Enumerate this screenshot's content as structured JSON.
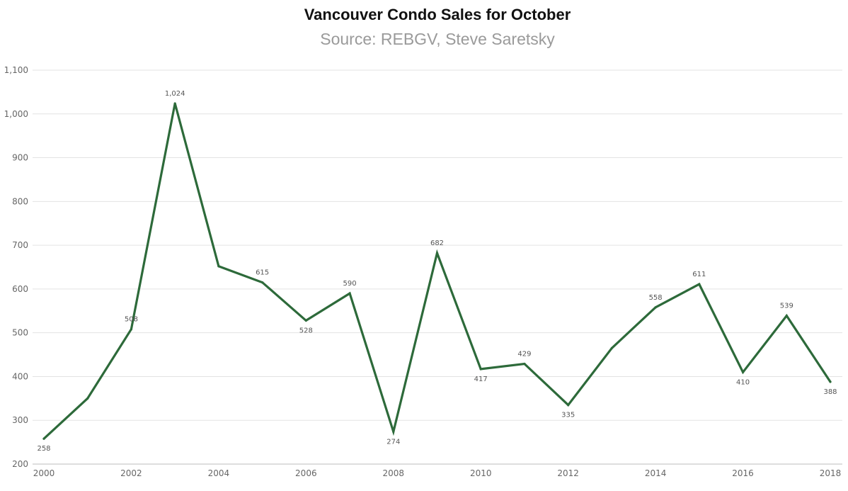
{
  "chart_data": {
    "type": "line",
    "title": "Vancouver Condo Sales for October",
    "subtitle": "Source: REBGV, Steve Saretsky",
    "xlabel": "",
    "ylabel": "",
    "x": [
      2000,
      2001,
      2002,
      2003,
      2004,
      2005,
      2006,
      2007,
      2008,
      2009,
      2010,
      2011,
      2012,
      2013,
      2014,
      2015,
      2016,
      2017,
      2018
    ],
    "series": [
      {
        "name": "",
        "color": "#2d6a3a",
        "values": [
          258,
          350,
          508,
          1024,
          652,
          615,
          528,
          590,
          274,
          682,
          417,
          429,
          335,
          465,
          558,
          611,
          410,
          539,
          388
        ]
      }
    ],
    "data_labels": [
      {
        "x": 2000,
        "text": "258",
        "pos": "below"
      },
      {
        "x": 2002,
        "text": "508",
        "pos": "above"
      },
      {
        "x": 2003,
        "text": "1,024",
        "pos": "above"
      },
      {
        "x": 2005,
        "text": "615",
        "pos": "above"
      },
      {
        "x": 2006,
        "text": "528",
        "pos": "below"
      },
      {
        "x": 2007,
        "text": "590",
        "pos": "above"
      },
      {
        "x": 2008,
        "text": "274",
        "pos": "below"
      },
      {
        "x": 2009,
        "text": "682",
        "pos": "above"
      },
      {
        "x": 2010,
        "text": "417",
        "pos": "below"
      },
      {
        "x": 2011,
        "text": "429",
        "pos": "above"
      },
      {
        "x": 2012,
        "text": "335",
        "pos": "below"
      },
      {
        "x": 2014,
        "text": "558",
        "pos": "above"
      },
      {
        "x": 2015,
        "text": "611",
        "pos": "above"
      },
      {
        "x": 2016,
        "text": "410",
        "pos": "below"
      },
      {
        "x": 2017,
        "text": "539",
        "pos": "above"
      },
      {
        "x": 2018,
        "text": "388",
        "pos": "below"
      }
    ],
    "yticks": [
      200,
      300,
      400,
      500,
      600,
      700,
      800,
      900,
      1000,
      1100
    ],
    "ytick_labels": [
      "200",
      "300",
      "400",
      "500",
      "600",
      "700",
      "800",
      "900",
      "1,000",
      "1,100"
    ],
    "xticks": [
      2000,
      2002,
      2004,
      2006,
      2008,
      2010,
      2012,
      2014,
      2016,
      2018
    ],
    "xtick_labels": [
      "2000",
      "2002",
      "2004",
      "2006",
      "2008",
      "2010",
      "2012",
      "2014",
      "2016",
      "2018"
    ],
    "ylim": [
      200,
      1100
    ],
    "xlim": [
      2000,
      2018
    ],
    "grid": true,
    "legend": "none"
  }
}
